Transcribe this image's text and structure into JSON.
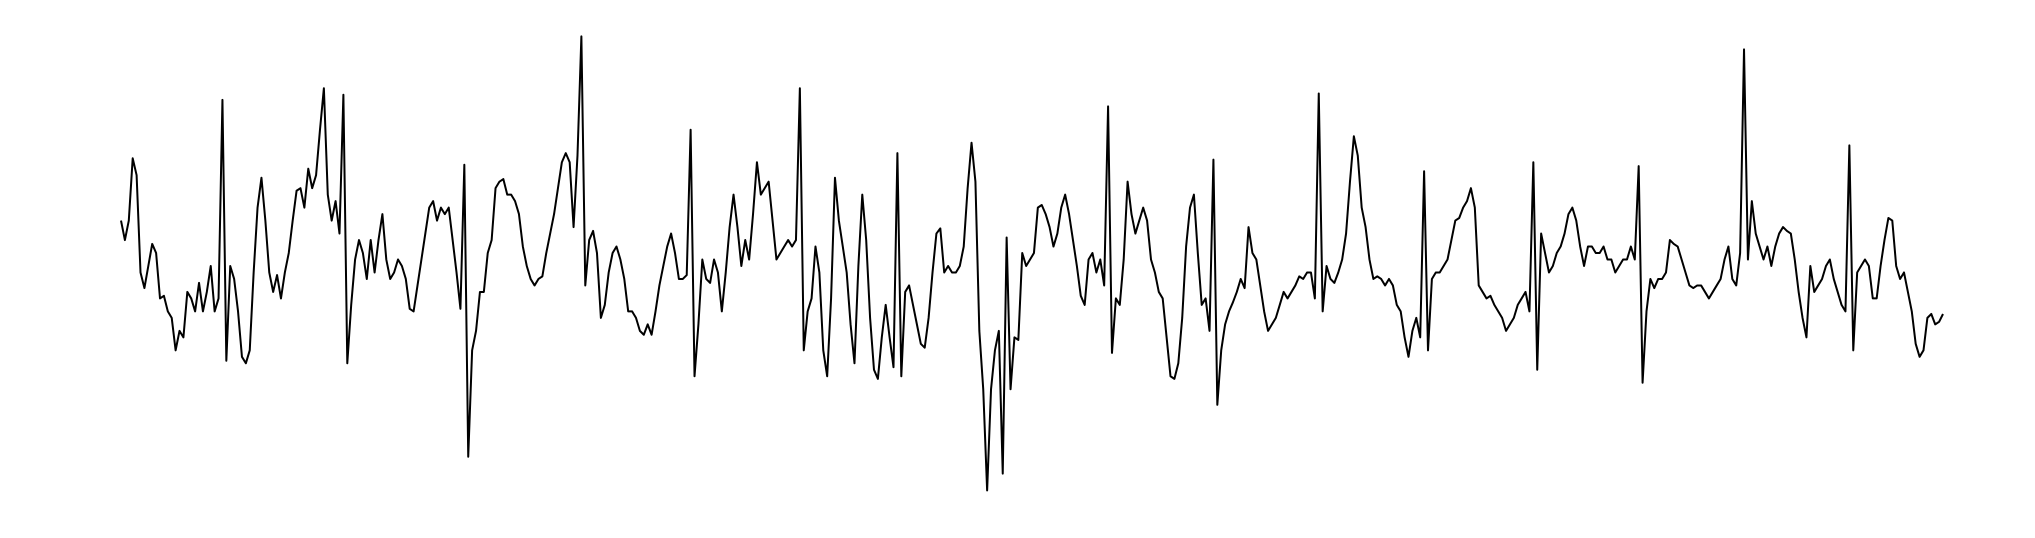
{
  "chart_data": {
    "type": "line",
    "color": "#000000",
    "ylim": [
      -190,
      185
    ],
    "values": [
      30,
      15,
      30,
      78,
      65,
      -10,
      -22,
      -5,
      12,
      5,
      -30,
      -28,
      -40,
      -45,
      -70,
      -55,
      -60,
      -25,
      -30,
      -40,
      -18,
      -40,
      -25,
      -5,
      -40,
      -30,
      123,
      -78,
      -5,
      -15,
      -40,
      -75,
      -80,
      -70,
      -10,
      40,
      63,
      30,
      -10,
      -25,
      -12,
      -30,
      -10,
      5,
      30,
      53,
      55,
      40,
      70,
      55,
      65,
      100,
      132,
      50,
      30,
      45,
      20,
      127,
      -80,
      -35,
      0,
      15,
      5,
      -15,
      15,
      -10,
      15,
      35,
      0,
      -15,
      -10,
      0,
      -5,
      -15,
      -38,
      -40,
      -20,
      0,
      20,
      40,
      45,
      30,
      40,
      35,
      40,
      15,
      -10,
      -38,
      73,
      -152,
      -70,
      -55,
      -25,
      -25,
      5,
      15,
      55,
      60,
      62,
      50,
      50,
      45,
      35,
      10,
      -5,
      -15,
      -20,
      -15,
      -13,
      5,
      20,
      35,
      55,
      75,
      82,
      75,
      25,
      80,
      172,
      -20,
      15,
      22,
      5,
      -45,
      -35,
      -10,
      5,
      10,
      0,
      -15,
      -40,
      -40,
      -45,
      -55,
      -58,
      -50,
      -58,
      -40,
      -20,
      -5,
      10,
      20,
      5,
      -15,
      -15,
      -12,
      100,
      -90,
      -50,
      0,
      -15,
      -18,
      0,
      -10,
      -40,
      -10,
      25,
      50,
      25,
      -5,
      15,
      0,
      35,
      75,
      50,
      55,
      60,
      30,
      0,
      5,
      10,
      15,
      10,
      15,
      132,
      -70,
      -40,
      -30,
      10,
      -10,
      -70,
      -90,
      -30,
      63,
      30,
      10,
      -10,
      -50,
      -80,
      -5,
      50,
      15,
      -45,
      -85,
      -92,
      -60,
      -35,
      -60,
      -83,
      82,
      -90,
      -25,
      -20,
      -35,
      -50,
      -65,
      -68,
      -45,
      -10,
      20,
      24,
      -10,
      -5,
      -10,
      -10,
      -5,
      10,
      55,
      90,
      60,
      -55,
      -100,
      -178,
      -100,
      -70,
      -55,
      -165,
      17,
      -100,
      -60,
      -62,
      5,
      -5,
      0,
      5,
      40,
      42,
      35,
      25,
      10,
      20,
      40,
      50,
      35,
      15,
      -5,
      -28,
      -35,
      0,
      5,
      -10,
      0,
      -20,
      118,
      -72,
      -30,
      -35,
      0,
      60,
      35,
      20,
      30,
      40,
      30,
      0,
      -10,
      -25,
      -30,
      -60,
      -90,
      -92,
      -80,
      -45,
      10,
      40,
      50,
      5,
      -35,
      -30,
      -55,
      77,
      -112,
      -70,
      -50,
      -40,
      -33,
      -25,
      -15,
      -22,
      25,
      5,
      0,
      -20,
      -40,
      -55,
      -50,
      -45,
      -35,
      -25,
      -30,
      -25,
      -20,
      -13,
      -15,
      -10,
      -10,
      -30,
      128,
      -40,
      -5,
      -15,
      -18,
      -10,
      0,
      20,
      60,
      95,
      80,
      40,
      25,
      0,
      -15,
      -13,
      -15,
      -20,
      -15,
      -20,
      -35,
      -40,
      -60,
      -75,
      -55,
      -45,
      -60,
      68,
      -70,
      -15,
      -10,
      -10,
      -5,
      0,
      15,
      30,
      32,
      40,
      45,
      55,
      40,
      -20,
      -25,
      -30,
      -28,
      -35,
      -40,
      -45,
      -55,
      -50,
      -45,
      -35,
      -30,
      -25,
      -40,
      75,
      -85,
      20,
      5,
      -10,
      -5,
      5,
      10,
      20,
      35,
      40,
      30,
      10,
      -5,
      10,
      10,
      5,
      5,
      10,
      0,
      0,
      -10,
      -5,
      0,
      0,
      10,
      0,
      72,
      -95,
      -40,
      -15,
      -22,
      -15,
      -15,
      -10,
      15,
      12,
      10,
      0,
      -10,
      -20,
      -22,
      -20,
      -20,
      -25,
      -30,
      -25,
      -20,
      -15,
      0,
      10,
      -15,
      -20,
      5,
      162,
      0,
      45,
      20,
      10,
      0,
      10,
      -5,
      10,
      20,
      25,
      22,
      20,
      0,
      -25,
      -45,
      -60,
      -5,
      -25,
      -20,
      -15,
      -5,
      0,
      -15,
      -25,
      -35,
      -40,
      88,
      -70,
      -10,
      -5,
      0,
      -5,
      -30,
      -30,
      -5,
      15,
      32,
      30,
      -5,
      -15,
      -10,
      -25,
      -40,
      -65,
      -75,
      -70,
      -45,
      -42,
      -50,
      -48,
      -42
    ]
  }
}
